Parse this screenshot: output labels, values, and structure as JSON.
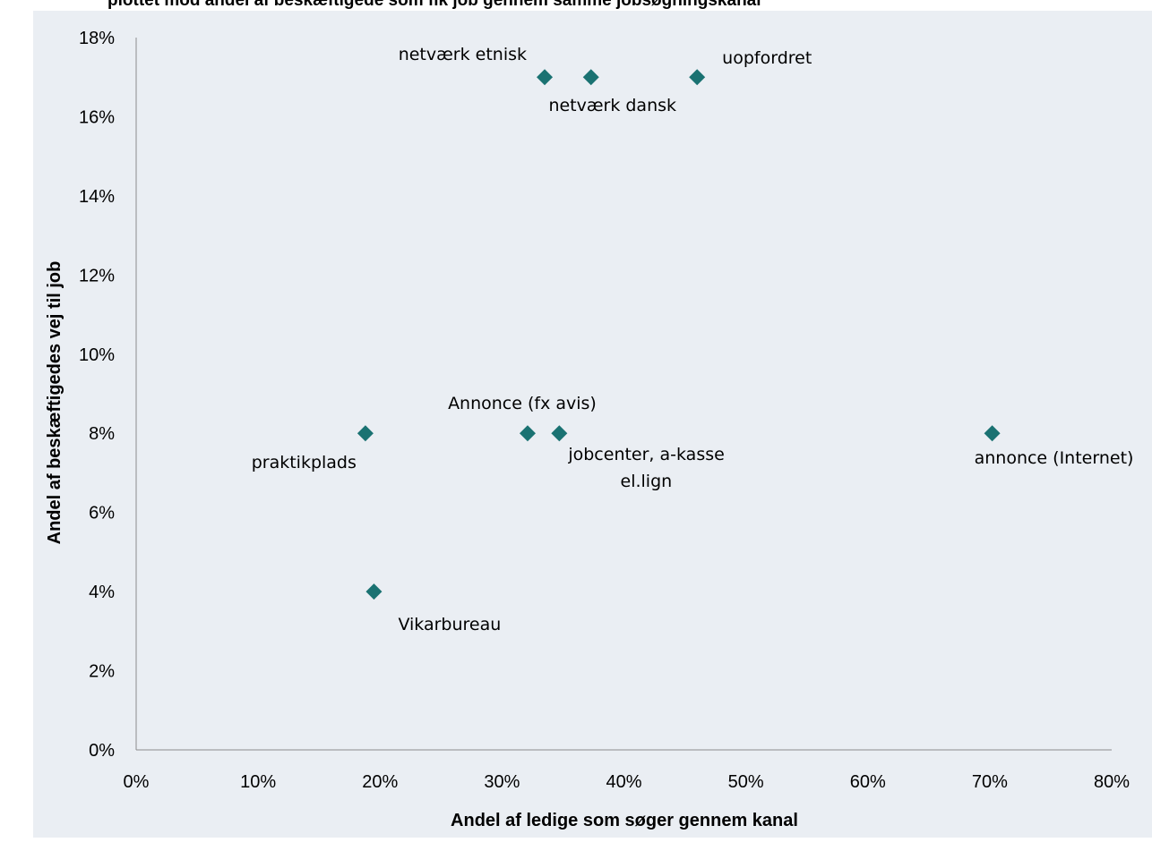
{
  "chart_data": {
    "type": "scatter",
    "title": "plottet mod andel af beskæftigede som fik job gennem samme jobsøgningskanal",
    "xlabel": "Andel af ledige som søger gennem kanal",
    "ylabel": "Andel af beskæftigedes vej til job",
    "xlim": [
      0,
      80
    ],
    "ylim": [
      0,
      18
    ],
    "x_ticks": [
      "0%",
      "10%",
      "20%",
      "30%",
      "40%",
      "50%",
      "60%",
      "70%",
      "80%"
    ],
    "y_ticks": [
      "0%",
      "2%",
      "4%",
      "6%",
      "8%",
      "10%",
      "12%",
      "14%",
      "16%",
      "18%"
    ],
    "grid": false,
    "marker_color": "#1a7272",
    "points": [
      {
        "label": "netværk etnisk",
        "x": 33.5,
        "y": 17
      },
      {
        "label": "netværk dansk",
        "x": 37.3,
        "y": 17
      },
      {
        "label": "uopfordret",
        "x": 46,
        "y": 17
      },
      {
        "label": "praktikplads",
        "x": 18.8,
        "y": 8
      },
      {
        "label": "Annonce (fx avis)",
        "x": 32.1,
        "y": 8
      },
      {
        "label": "jobcenter, a-kasse el.lign",
        "x": 34.7,
        "y": 8
      },
      {
        "label": "annonce (Internet)",
        "x": 70.2,
        "y": 8
      },
      {
        "label": "Vikarbureau",
        "x": 19.5,
        "y": 4
      }
    ]
  }
}
